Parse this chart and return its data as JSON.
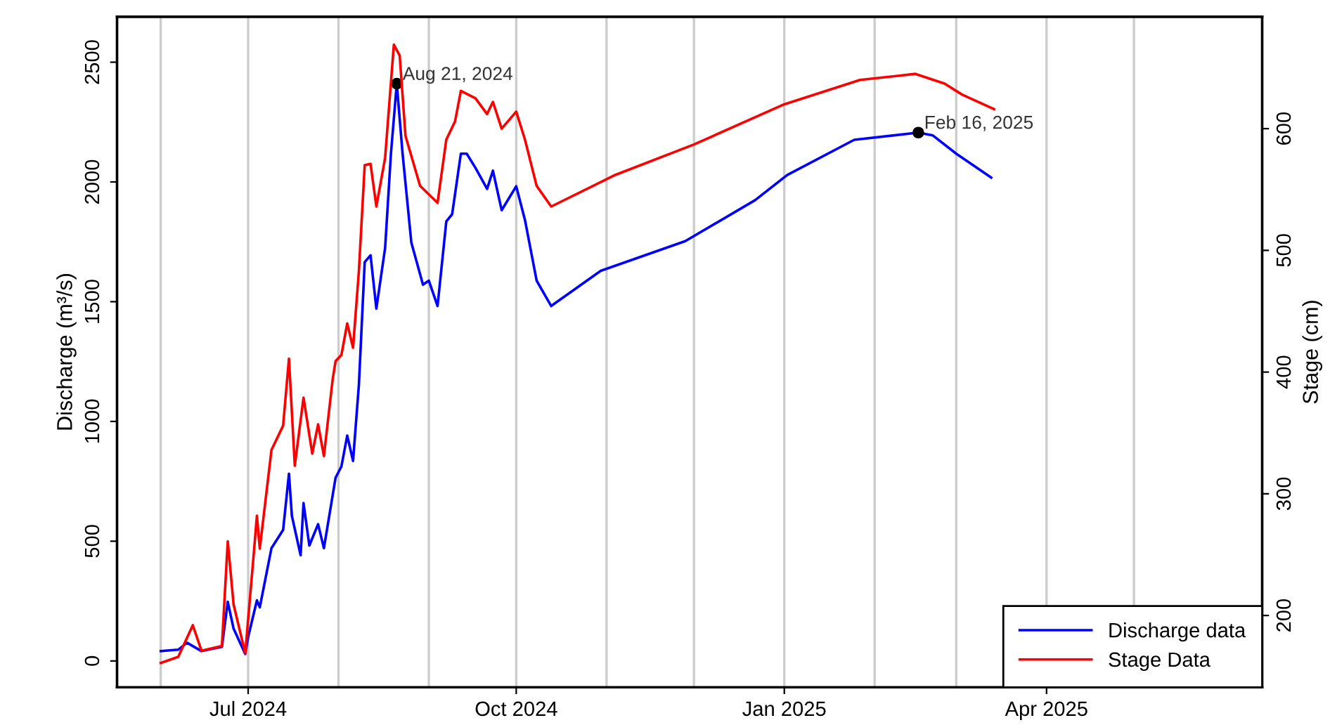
{
  "chart_data": {
    "type": "line",
    "ylabel": "Discharge (m³/s)",
    "y2label": "Stage (cm)",
    "xlim": [
      "2024-05-17",
      "2025-06-14"
    ],
    "xticks": [
      {
        "value": "2024-06-01",
        "label": null
      },
      {
        "value": "2024-07-01",
        "label": "Jul 2024"
      },
      {
        "value": "2024-08-01",
        "label": null
      },
      {
        "value": "2024-09-01",
        "label": null
      },
      {
        "value": "2024-10-01",
        "label": "Oct 2024"
      },
      {
        "value": "2024-11-01",
        "label": null
      },
      {
        "value": "2024-12-01",
        "label": null
      },
      {
        "value": "2025-01-01",
        "label": "Jan 2025"
      },
      {
        "value": "2025-02-01",
        "label": null
      },
      {
        "value": "2025-03-01",
        "label": null
      },
      {
        "value": "2025-04-01",
        "label": "Apr 2025"
      },
      {
        "value": "2025-05-01",
        "label": null
      }
    ],
    "ylim": [
      -110,
      2690
    ],
    "yticks": [
      0,
      500,
      1000,
      1500,
      2000,
      2500
    ],
    "y2lim": [
      141,
      692
    ],
    "y2ticks": [
      200,
      300,
      400,
      500,
      600
    ],
    "grid": "x",
    "legend": "bottom right",
    "series": [
      {
        "name": "Discharge data",
        "color": "#0000ff",
        "x": [
          "2024-06-01",
          "2024-06-07",
          "2024-06-10",
          "2024-06-15",
          "2024-06-22",
          "2024-06-24",
          "2024-06-26",
          "2024-06-30",
          "2024-07-01",
          "2024-07-04",
          "2024-07-05",
          "2024-07-09",
          "2024-07-13",
          "2024-07-15",
          "2024-07-16",
          "2024-07-19",
          "2024-07-20",
          "2024-07-22",
          "2024-07-25",
          "2024-07-27",
          "2024-07-31",
          "2024-08-02",
          "2024-08-04",
          "2024-08-06",
          "2024-08-08",
          "2024-08-10",
          "2024-08-12",
          "2024-08-14",
          "2024-08-17",
          "2024-08-19",
          "2024-08-21",
          "2024-08-23",
          "2024-08-26",
          "2024-08-30",
          "2024-09-01",
          "2024-09-04",
          "2024-09-07",
          "2024-09-09",
          "2024-09-12",
          "2024-09-14",
          "2024-09-17",
          "2024-09-21",
          "2024-09-23",
          "2024-09-26",
          "2024-10-01",
          "2024-10-04",
          "2024-10-08",
          "2024-10-13",
          "2024-10-30",
          "2024-11-28",
          "2024-12-22",
          "2025-01-02",
          "2025-01-25",
          "2025-02-16",
          "2025-02-21",
          "2025-03-01",
          "2025-03-13"
        ],
        "values": [
          41,
          47,
          76,
          41,
          59,
          247,
          135,
          29,
          100,
          253,
          224,
          471,
          547,
          782,
          606,
          441,
          659,
          482,
          571,
          471,
          765,
          812,
          941,
          835,
          1153,
          1665,
          1694,
          1471,
          1724,
          2118,
          2410,
          2118,
          1747,
          1571,
          1588,
          1482,
          1835,
          1865,
          2118,
          2118,
          2059,
          1971,
          2047,
          1882,
          1982,
          1841,
          1588,
          1482,
          1629,
          1753,
          1924,
          2029,
          2176,
          2206,
          2194,
          2118,
          2018
        ]
      },
      {
        "name": "Stage Data",
        "color": "#ff0000",
        "axis": "y2",
        "x": [
          "2024-06-01",
          "2024-06-07",
          "2024-06-12",
          "2024-06-15",
          "2024-06-22",
          "2024-06-24",
          "2024-06-26",
          "2024-06-30",
          "2024-07-03",
          "2024-07-04",
          "2024-07-05",
          "2024-07-09",
          "2024-07-13",
          "2024-07-15",
          "2024-07-17",
          "2024-07-20",
          "2024-07-23",
          "2024-07-25",
          "2024-07-27",
          "2024-07-30",
          "2024-07-31",
          "2024-08-02",
          "2024-08-04",
          "2024-08-06",
          "2024-08-08",
          "2024-08-10",
          "2024-08-12",
          "2024-08-14",
          "2024-08-17",
          "2024-08-20",
          "2024-08-22",
          "2024-08-24",
          "2024-08-29",
          "2024-09-04",
          "2024-09-07",
          "2024-09-10",
          "2024-09-12",
          "2024-09-17",
          "2024-09-21",
          "2024-09-23",
          "2024-09-26",
          "2024-10-01",
          "2024-10-04",
          "2024-10-08",
          "2024-10-13",
          "2024-11-04",
          "2024-12-01",
          "2025-01-01",
          "2025-01-27",
          "2025-02-15",
          "2025-02-25",
          "2025-03-03",
          "2025-03-14"
        ],
        "values": [
          161,
          166,
          192,
          171,
          175,
          261,
          209,
          169,
          253,
          282,
          255,
          336,
          356,
          411,
          323,
          379,
          333,
          357,
          331,
          394,
          409,
          414,
          440,
          420,
          483,
          570,
          571,
          536,
          576,
          669,
          660,
          594,
          553,
          539,
          591,
          606,
          631,
          625,
          612,
          622,
          600,
          614,
          591,
          553,
          536,
          562,
          587,
          620,
          640,
          645,
          637,
          628,
          616
        ]
      }
    ],
    "annotations": [
      {
        "text": "Aug 21, 2024",
        "x": "2024-08-21",
        "y": 2410
      },
      {
        "text": "Feb 16, 2025",
        "x": "2025-02-16",
        "y": 2206
      }
    ]
  }
}
